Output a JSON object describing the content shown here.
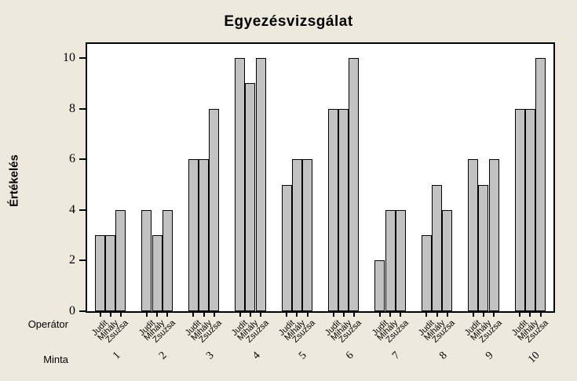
{
  "chart_data": {
    "type": "bar",
    "title": "Egyezésvizsgálat",
    "ylabel": "Értékelés",
    "xlabel_rows": {
      "operator": "Operátor",
      "sample": "Minta"
    },
    "categories": [
      "1",
      "2",
      "3",
      "4",
      "5",
      "6",
      "7",
      "8",
      "9",
      "10"
    ],
    "series": [
      {
        "name": "Judit",
        "values": [
          3,
          4,
          6,
          10,
          5,
          8,
          2,
          3,
          6,
          8
        ]
      },
      {
        "name": "Mihály",
        "values": [
          3,
          3,
          6,
          9,
          6,
          8,
          4,
          5,
          5,
          8
        ]
      },
      {
        "name": "Zsuzsa",
        "values": [
          4,
          4,
          8,
          10,
          6,
          10,
          4,
          4,
          6,
          10
        ]
      }
    ],
    "yticks": [
      0,
      2,
      4,
      6,
      8,
      10
    ],
    "ylim": [
      0,
      10.56
    ],
    "grid": false,
    "legend": "none",
    "colors": {
      "background": "#ede9dc",
      "plot_background": "#ffffff",
      "bar_fill": "#c2c2c2",
      "bar_border": "#000000",
      "axis": "#000000",
      "text": "#000000"
    }
  }
}
